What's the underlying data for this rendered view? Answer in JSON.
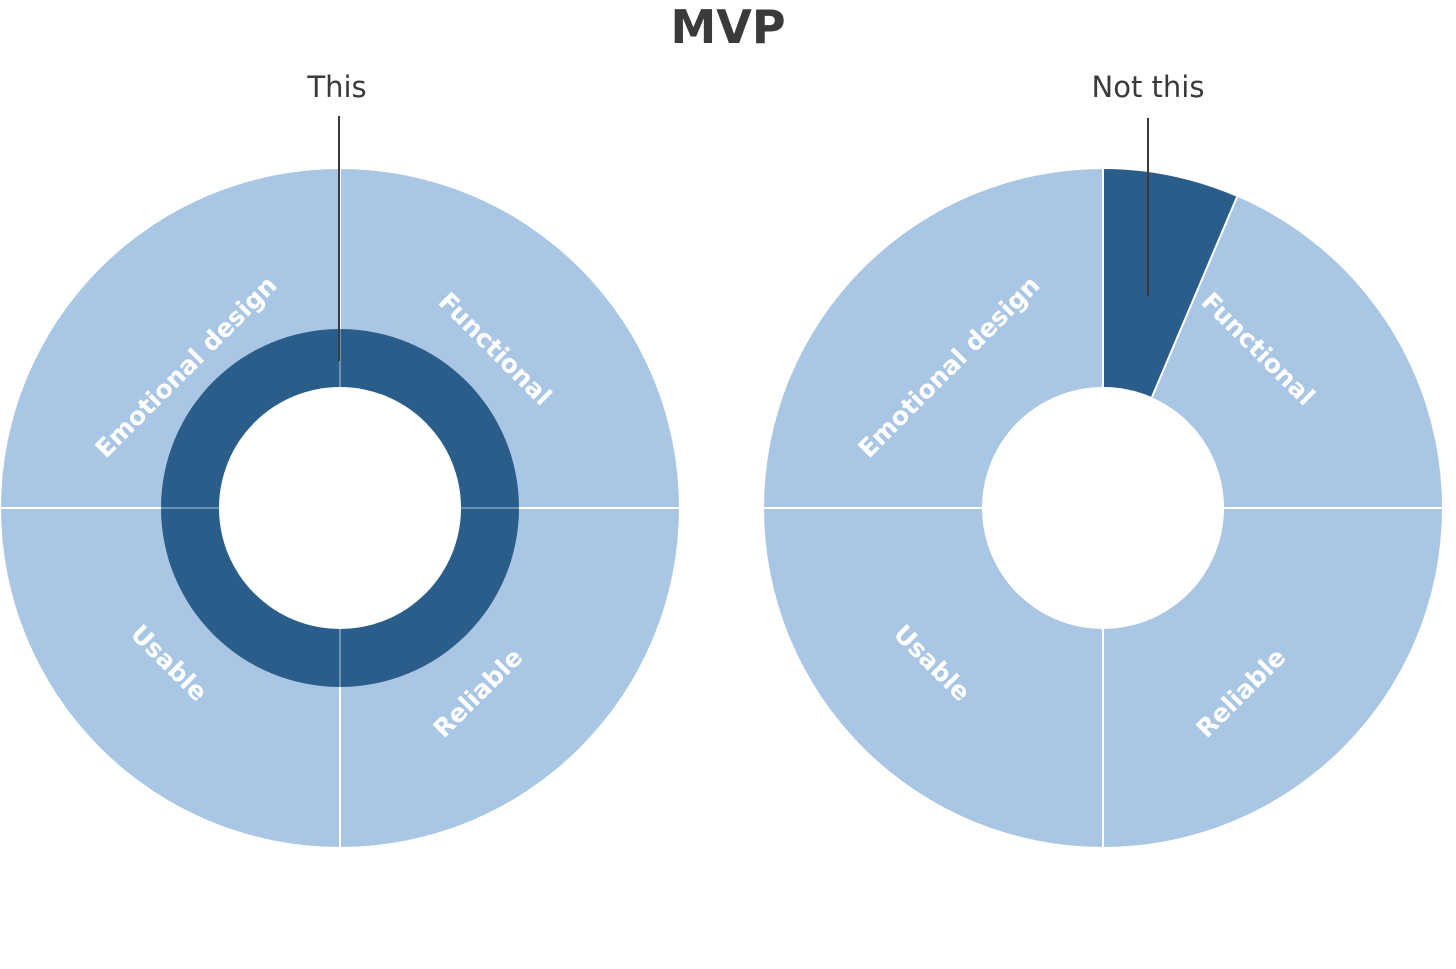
{
  "title": "MVP",
  "colors": {
    "outer": "#a9c6e5",
    "highlight": "#2a5d8a",
    "divider": "#ffffff",
    "text": "#3a3a3a",
    "label": "#ffffff",
    "leader": "#3a3a3a"
  },
  "segments": [
    "Functional",
    "Reliable",
    "Usable",
    "Emotional design"
  ],
  "left": {
    "callout": "This",
    "highlight": "inner ring spanning all four segments"
  },
  "right": {
    "callout": "Not this",
    "highlight": "slice of the Functional segment only"
  }
}
